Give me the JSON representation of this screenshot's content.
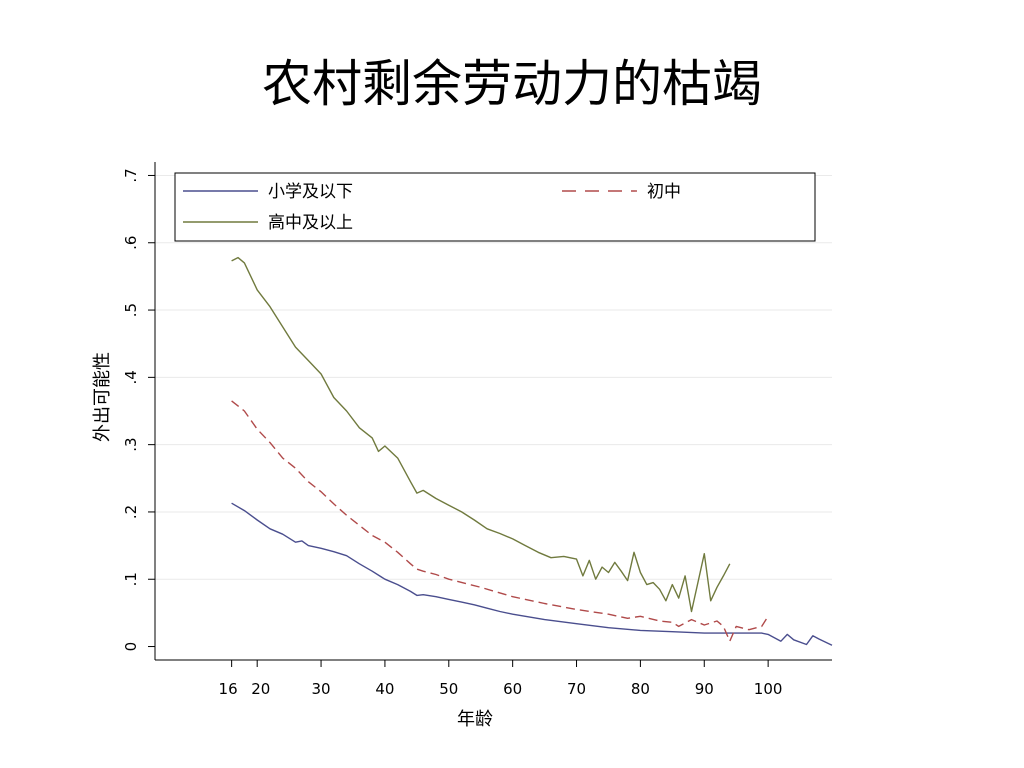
{
  "slide": {
    "title": "农村剩余劳动力的枯竭"
  },
  "chart_data": {
    "type": "line",
    "title": "",
    "xlabel": "年龄",
    "ylabel": "外出可能性",
    "xlim": [
      4,
      110
    ],
    "ylim": [
      -0.02,
      0.72
    ],
    "x_ticks": [
      16,
      20,
      30,
      40,
      50,
      60,
      70,
      80,
      90,
      100
    ],
    "x_tick_labels": [
      "16",
      "20",
      "30",
      "40",
      "50",
      "60",
      "70",
      "80",
      "90",
      "100"
    ],
    "y_ticks": [
      0,
      0.1,
      0.2,
      0.3,
      0.4,
      0.5,
      0.6,
      0.7
    ],
    "y_tick_labels": [
      "0",
      ".1",
      ".2",
      ".3",
      ".4",
      ".5",
      ".6",
      ".7"
    ],
    "grid": "horizontal",
    "legend": "top",
    "series": [
      {
        "name": "小学及以下",
        "color": "#4a4e8e",
        "style": "solid",
        "points": [
          [
            16,
            0.213
          ],
          [
            18,
            0.202
          ],
          [
            20,
            0.188
          ],
          [
            22,
            0.175
          ],
          [
            24,
            0.167
          ],
          [
            26,
            0.155
          ],
          [
            27,
            0.157
          ],
          [
            28,
            0.15
          ],
          [
            30,
            0.146
          ],
          [
            32,
            0.141
          ],
          [
            34,
            0.135
          ],
          [
            36,
            0.123
          ],
          [
            38,
            0.112
          ],
          [
            40,
            0.1
          ],
          [
            42,
            0.092
          ],
          [
            44,
            0.082
          ],
          [
            45,
            0.076
          ],
          [
            46,
            0.077
          ],
          [
            48,
            0.074
          ],
          [
            50,
            0.07
          ],
          [
            52,
            0.066
          ],
          [
            54,
            0.062
          ],
          [
            56,
            0.057
          ],
          [
            58,
            0.052
          ],
          [
            60,
            0.048
          ],
          [
            65,
            0.04
          ],
          [
            70,
            0.034
          ],
          [
            75,
            0.028
          ],
          [
            80,
            0.024
          ],
          [
            85,
            0.022
          ],
          [
            90,
            0.02
          ],
          [
            95,
            0.02
          ],
          [
            99,
            0.02
          ],
          [
            100,
            0.018
          ],
          [
            102,
            0.008
          ],
          [
            103,
            0.018
          ],
          [
            104,
            0.01
          ],
          [
            106,
            0.003
          ],
          [
            107,
            0.016
          ],
          [
            108,
            0.011
          ],
          [
            110,
            0.002
          ]
        ]
      },
      {
        "name": "初中",
        "color": "#b04a4a",
        "style": "dashed",
        "points": [
          [
            16,
            0.365
          ],
          [
            18,
            0.35
          ],
          [
            20,
            0.323
          ],
          [
            22,
            0.303
          ],
          [
            24,
            0.28
          ],
          [
            26,
            0.265
          ],
          [
            28,
            0.245
          ],
          [
            30,
            0.23
          ],
          [
            32,
            0.212
          ],
          [
            34,
            0.195
          ],
          [
            36,
            0.18
          ],
          [
            38,
            0.165
          ],
          [
            40,
            0.155
          ],
          [
            42,
            0.14
          ],
          [
            44,
            0.123
          ],
          [
            45,
            0.115
          ],
          [
            46,
            0.112
          ],
          [
            48,
            0.107
          ],
          [
            50,
            0.1
          ],
          [
            55,
            0.088
          ],
          [
            60,
            0.074
          ],
          [
            65,
            0.064
          ],
          [
            70,
            0.055
          ],
          [
            75,
            0.048
          ],
          [
            78,
            0.042
          ],
          [
            80,
            0.045
          ],
          [
            83,
            0.038
          ],
          [
            85,
            0.036
          ],
          [
            86,
            0.03
          ],
          [
            88,
            0.04
          ],
          [
            90,
            0.032
          ],
          [
            92,
            0.038
          ],
          [
            93,
            0.03
          ],
          [
            94,
            0.008
          ],
          [
            95,
            0.03
          ],
          [
            97,
            0.025
          ],
          [
            99,
            0.03
          ],
          [
            100,
            0.045
          ]
        ]
      },
      {
        "name": "高中及以上",
        "color": "#707a3e",
        "style": "solid",
        "points": [
          [
            16,
            0.573
          ],
          [
            17,
            0.578
          ],
          [
            18,
            0.57
          ],
          [
            20,
            0.53
          ],
          [
            22,
            0.505
          ],
          [
            24,
            0.475
          ],
          [
            26,
            0.445
          ],
          [
            28,
            0.425
          ],
          [
            30,
            0.405
          ],
          [
            32,
            0.37
          ],
          [
            34,
            0.35
          ],
          [
            36,
            0.325
          ],
          [
            38,
            0.31
          ],
          [
            39,
            0.29
          ],
          [
            40,
            0.298
          ],
          [
            42,
            0.28
          ],
          [
            44,
            0.245
          ],
          [
            45,
            0.228
          ],
          [
            46,
            0.232
          ],
          [
            48,
            0.22
          ],
          [
            50,
            0.21
          ],
          [
            52,
            0.2
          ],
          [
            54,
            0.188
          ],
          [
            56,
            0.175
          ],
          [
            58,
            0.168
          ],
          [
            60,
            0.16
          ],
          [
            62,
            0.15
          ],
          [
            64,
            0.14
          ],
          [
            66,
            0.132
          ],
          [
            68,
            0.134
          ],
          [
            70,
            0.13
          ],
          [
            71,
            0.105
          ],
          [
            72,
            0.128
          ],
          [
            73,
            0.1
          ],
          [
            74,
            0.118
          ],
          [
            75,
            0.11
          ],
          [
            76,
            0.125
          ],
          [
            77,
            0.112
          ],
          [
            78,
            0.098
          ],
          [
            79,
            0.14
          ],
          [
            80,
            0.11
          ],
          [
            81,
            0.092
          ],
          [
            82,
            0.095
          ],
          [
            83,
            0.085
          ],
          [
            84,
            0.068
          ],
          [
            85,
            0.092
          ],
          [
            86,
            0.072
          ],
          [
            87,
            0.105
          ],
          [
            88,
            0.052
          ],
          [
            89,
            0.095
          ],
          [
            90,
            0.138
          ],
          [
            91,
            0.068
          ],
          [
            92,
            0.088
          ],
          [
            93,
            0.105
          ],
          [
            94,
            0.123
          ]
        ]
      }
    ]
  }
}
